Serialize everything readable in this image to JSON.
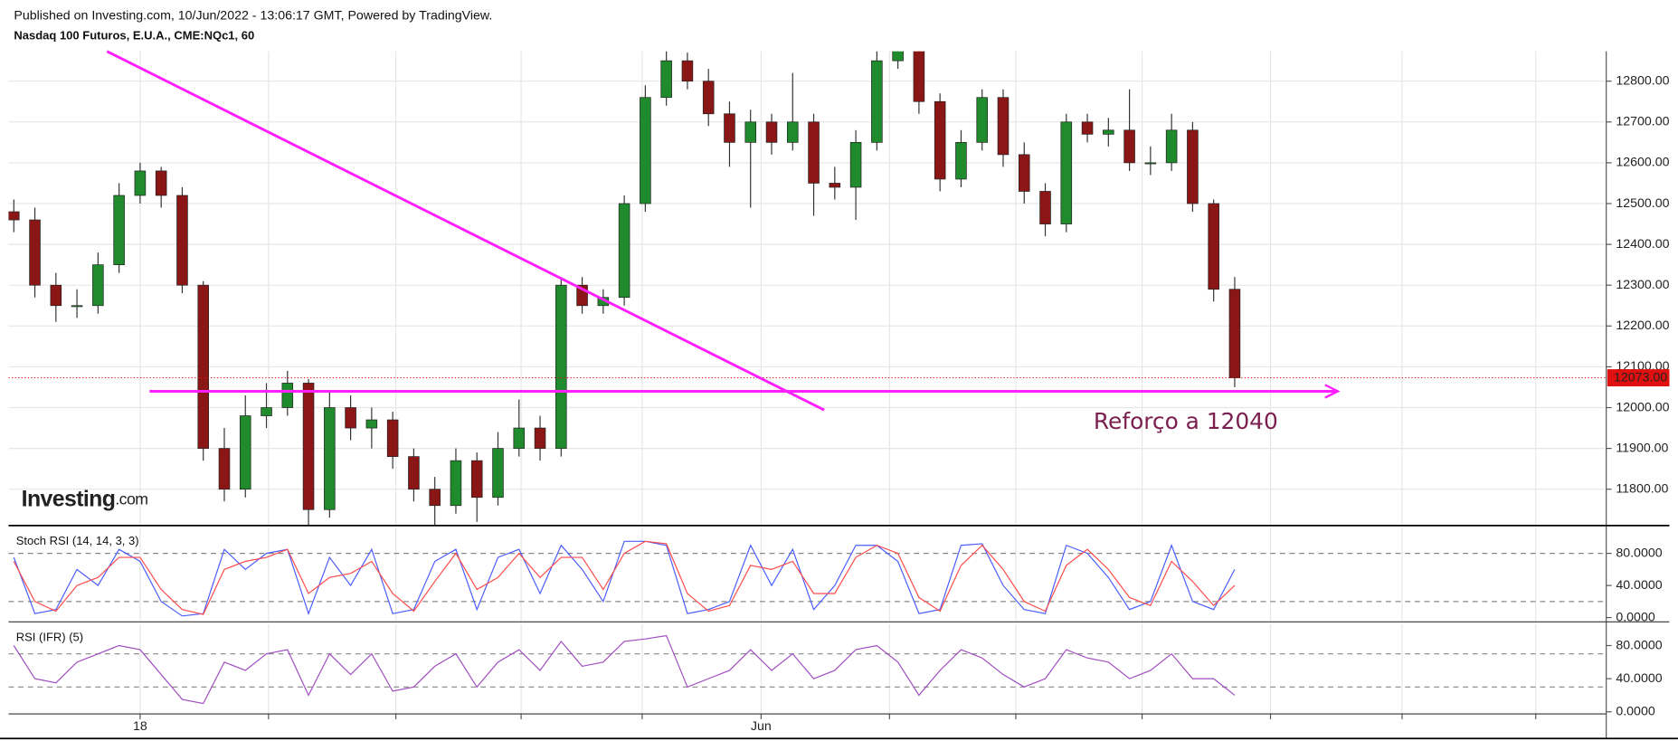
{
  "header": {
    "published": "Published on Investing.com, 10/Jun/2022 - 13:06:17 GMT, Powered by TradingView.",
    "symbol": "Nasdaq 100 Futuros, E.U.A., CME:NQc1, 60"
  },
  "logo": {
    "text": "Investing",
    "suffix": ".com"
  },
  "chart_data": [
    {
      "type": "candlestick",
      "x": [
        -24,
        -20,
        -16,
        -12,
        -8,
        -4,
        0,
        4,
        8,
        12,
        16,
        20,
        24,
        28,
        32,
        36,
        40,
        44,
        48,
        52,
        56,
        60,
        64,
        68,
        72,
        76,
        80,
        84,
        88,
        92,
        96,
        100,
        104,
        108,
        112,
        116,
        120,
        124,
        128,
        132,
        136,
        140,
        144,
        148,
        152,
        156,
        160,
        164,
        168,
        172,
        176,
        180,
        184,
        188,
        192,
        196,
        200,
        204,
        208
      ],
      "open": [
        12480,
        12460,
        12300,
        12250,
        12250,
        12350,
        12520,
        12580,
        12520,
        12300,
        11900,
        11800,
        11980,
        12000,
        12060,
        11750,
        12000,
        11950,
        11970,
        11880,
        11800,
        11760,
        11870,
        11780,
        11900,
        11950,
        11900,
        12300,
        12250,
        12270,
        12500,
        12760,
        12850,
        12800,
        12720,
        12650,
        12700,
        12650,
        12700,
        12550,
        12540,
        12650,
        12850,
        12900,
        12750,
        12560,
        12650,
        12760,
        12620,
        12530,
        12450,
        12700,
        12670,
        12680,
        12600,
        12600,
        12680,
        12500,
        12290
      ],
      "high": [
        12510,
        12490,
        12330,
        12290,
        12380,
        12550,
        12600,
        12590,
        12540,
        12310,
        11950,
        12030,
        12060,
        12090,
        12070,
        12040,
        12030,
        12000,
        11990,
        11900,
        11830,
        11900,
        11890,
        11940,
        12020,
        11980,
        12320,
        12320,
        12290,
        12520,
        12790,
        12880,
        12870,
        12830,
        12750,
        12730,
        12720,
        12820,
        12720,
        12590,
        12680,
        12880,
        12930,
        12920,
        12770,
        12680,
        12780,
        12780,
        12650,
        12550,
        12720,
        12720,
        12710,
        12780,
        12640,
        12720,
        12700,
        12510,
        12320
      ],
      "low": [
        12430,
        12270,
        12210,
        12220,
        12230,
        12330,
        12500,
        12490,
        12280,
        11870,
        11770,
        11780,
        11950,
        11980,
        11700,
        11730,
        11920,
        11900,
        11850,
        11770,
        11710,
        11740,
        11720,
        11760,
        11880,
        11870,
        11880,
        12230,
        12230,
        12250,
        12480,
        12740,
        12780,
        12690,
        12590,
        12490,
        12620,
        12630,
        12470,
        12510,
        12460,
        12630,
        12830,
        12720,
        12530,
        12540,
        12630,
        12590,
        12500,
        12420,
        12430,
        12650,
        12640,
        12580,
        12570,
        12580,
        12480,
        12260,
        12050
      ],
      "close": [
        12460,
        12300,
        12250,
        12250,
        12350,
        12520,
        12580,
        12520,
        12300,
        11900,
        11800,
        11980,
        12000,
        12060,
        11750,
        12000,
        11950,
        11970,
        11880,
        11800,
        11760,
        11870,
        11780,
        11900,
        11950,
        11900,
        12300,
        12250,
        12270,
        12500,
        12760,
        12850,
        12800,
        12720,
        12650,
        12700,
        12650,
        12700,
        12550,
        12540,
        12650,
        12850,
        12900,
        12750,
        12560,
        12650,
        12760,
        12620,
        12530,
        12450,
        12700,
        12670,
        12680,
        12600,
        12600,
        12680,
        12500,
        12290,
        12073
      ],
      "up_color": "#1f8b2c",
      "down_color": "#8a1616",
      "xlim": [
        -25,
        278.4
      ],
      "xticks": [
        {
          "value": 0,
          "label": "18"
        },
        {
          "value": 24.4,
          "label": null
        },
        {
          "value": 48.6,
          "label": null
        },
        {
          "value": 72.4,
          "label": null
        },
        {
          "value": 95.4,
          "label": null
        },
        {
          "value": 118,
          "label": "Jun"
        },
        {
          "value": 142.4,
          "label": null
        },
        {
          "value": 166.4,
          "label": null
        },
        {
          "value": 190.4,
          "label": null
        },
        {
          "value": 214.8,
          "label": null
        },
        {
          "value": 239.8,
          "label": null
        },
        {
          "value": 265.2,
          "label": null
        }
      ],
      "ylim": [
        11711,
        12873
      ],
      "yticks": [
        {
          "value": 11800,
          "label": "11800.00"
        },
        {
          "value": 11900,
          "label": "11900.00"
        },
        {
          "value": 12000,
          "label": "12000.00"
        },
        {
          "value": 12100,
          "label": "12100.00"
        },
        {
          "value": 12200,
          "label": "12200.00"
        },
        {
          "value": 12300,
          "label": "12300.00"
        },
        {
          "value": 12400,
          "label": "12400.00"
        },
        {
          "value": 12500,
          "label": "12500.00"
        },
        {
          "value": 12600,
          "label": "12600.00"
        },
        {
          "value": 12700,
          "label": "12700.00"
        },
        {
          "value": 12800,
          "label": "12800.00"
        }
      ],
      "grid": true,
      "last_price": {
        "value": 12073,
        "label": "12073.00",
        "color": "#e01010"
      },
      "annotations": [
        {
          "type": "trendline",
          "x": [
            -6.3,
            130
          ],
          "y": [
            12873,
            11994
          ],
          "color": "#ff1fff"
        },
        {
          "type": "arrow",
          "x": [
            1.8,
            227.6
          ],
          "y": [
            12040,
            12040
          ],
          "color": "#ff1fff"
        },
        {
          "type": "text",
          "text": "Reforço a 12040",
          "x": 198.7,
          "y": 11963,
          "color": "#7a1f4f"
        }
      ]
    },
    {
      "type": "line",
      "label": "Stoch RSI (14, 14, 3, 3)",
      "series": [
        {
          "color": "#4a5cff",
          "values": [
            75,
            5,
            10,
            60,
            40,
            85,
            70,
            20,
            2,
            5,
            85,
            60,
            80,
            85,
            5,
            75,
            40,
            85,
            5,
            10,
            70,
            85,
            10,
            75,
            85,
            30,
            90,
            60,
            20,
            95,
            95,
            90,
            5,
            10,
            20,
            90,
            40,
            85,
            10,
            40,
            90,
            90,
            70,
            5,
            10,
            90,
            92,
            40,
            10,
            5,
            90,
            80,
            50,
            10,
            20,
            90,
            20,
            10,
            60
          ]
        },
        {
          "color": "#ff4a4a",
          "values": [
            70,
            20,
            8,
            40,
            50,
            75,
            75,
            35,
            10,
            4,
            60,
            70,
            75,
            85,
            30,
            50,
            55,
            70,
            30,
            8,
            45,
            80,
            35,
            50,
            80,
            50,
            75,
            75,
            35,
            80,
            95,
            92,
            30,
            8,
            15,
            65,
            60,
            70,
            30,
            30,
            75,
            90,
            80,
            25,
            8,
            65,
            90,
            60,
            20,
            8,
            65,
            85,
            60,
            25,
            15,
            70,
            45,
            15,
            40
          ]
        }
      ],
      "ylim": [
        -4,
        112
      ],
      "yticks": [
        {
          "value": 0,
          "label": "0.0000"
        },
        {
          "value": 40,
          "label": "40.0000"
        },
        {
          "value": 80,
          "label": "80.0000"
        }
      ],
      "bands": [
        80,
        20
      ]
    },
    {
      "type": "line",
      "label": "RSI (IFR) (5)",
      "series": [
        {
          "color": "#a04cc0",
          "values": [
            80,
            40,
            35,
            60,
            70,
            80,
            75,
            45,
            15,
            10,
            60,
            50,
            70,
            75,
            20,
            70,
            45,
            70,
            25,
            30,
            55,
            70,
            30,
            60,
            75,
            50,
            85,
            55,
            60,
            85,
            88,
            92,
            30,
            40,
            50,
            75,
            50,
            70,
            40,
            50,
            75,
            80,
            60,
            20,
            50,
            75,
            65,
            45,
            30,
            40,
            75,
            65,
            60,
            40,
            50,
            70,
            40,
            40,
            20
          ]
        }
      ],
      "ylim": [
        -2.5,
        106
      ],
      "yticks": [
        {
          "value": 0,
          "label": "0.0000"
        },
        {
          "value": 40,
          "label": "40.0000"
        },
        {
          "value": 80,
          "label": "80.0000"
        }
      ],
      "bands": [
        70,
        30
      ]
    }
  ]
}
